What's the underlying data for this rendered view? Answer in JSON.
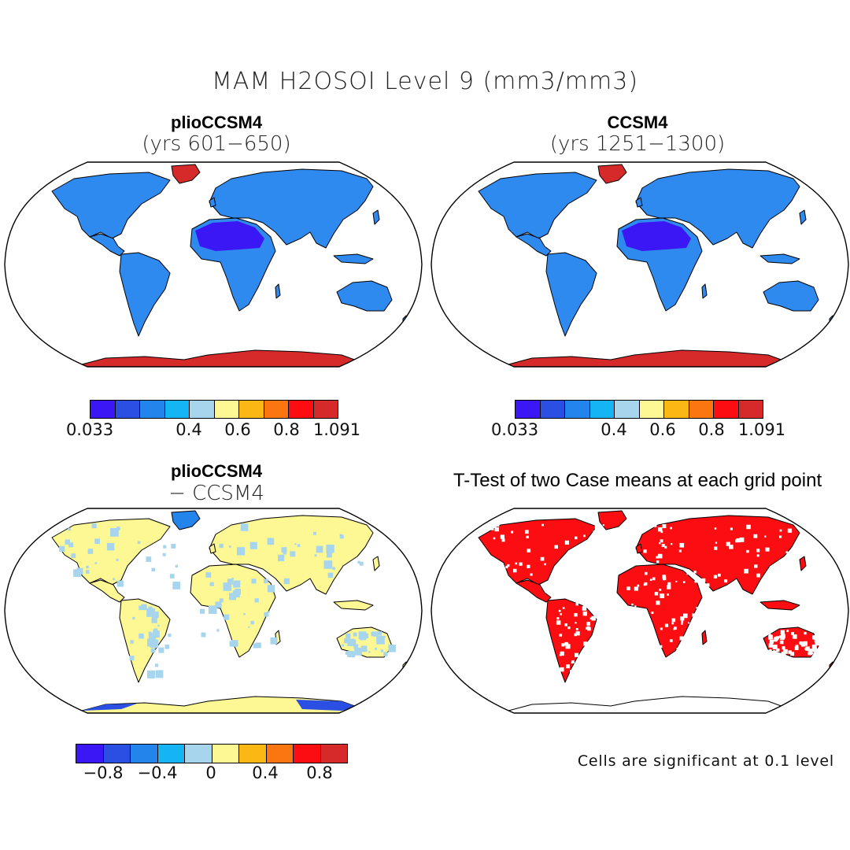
{
  "title": "MAM H2OSOI Level 9 (mm3/mm3)",
  "panels": {
    "top_left": {
      "title": "plioCCSM4",
      "subtitle": "(yrs 601−650)"
    },
    "top_right": {
      "title": "CCSM4",
      "subtitle": "(yrs 1251−1300)"
    },
    "bottom_left": {
      "title": "plioCCSM4",
      "subtitle": "− CCSM4"
    },
    "bottom_right": {
      "title": "T-Test of two Case means at each grid point",
      "note": "Cells are significant at 0.1 level"
    }
  },
  "colorbars": {
    "abs": {
      "colors": [
        "#3c17f5",
        "#2a4fe2",
        "#2384ec",
        "#15b4f2",
        "#a7d5ee",
        "#fdf794",
        "#fbb714",
        "#fb7510",
        "#fb0d12",
        "#d62a2a"
      ],
      "labels": [
        "0.033",
        "0.4",
        "0.6",
        "0.8",
        "1.091"
      ]
    },
    "diff": {
      "colors": [
        "#3c17f5",
        "#2a4fe2",
        "#2384ec",
        "#15b4f2",
        "#a7d5ee",
        "#fdf794",
        "#fbb714",
        "#fb7510",
        "#fb0d12",
        "#d62a2a"
      ],
      "labels": [
        "−0.8",
        "−0.4",
        "0",
        "0.4",
        "0.8"
      ]
    }
  },
  "map_fills": {
    "top_left": {
      "land": "#2f8af0",
      "sahara": "#3c17f5",
      "antarctica": "#d62a2a",
      "greenland": "#d62a2a"
    },
    "top_right": {
      "land": "#2f8af0",
      "sahara": "#3c17f5",
      "antarctica": "#d62a2a",
      "greenland": "#d62a2a"
    },
    "bottom_left": {
      "land": "#fdf794",
      "patches": "#a7d5ee",
      "antarctica": "#fdf794",
      "antarctica_edge": "#2a4fe2",
      "greenland": "#2384ec"
    },
    "bottom_right": {
      "land": "#fb0d12",
      "speckle": "#ffffff",
      "antarctica": "#ffffff"
    }
  }
}
